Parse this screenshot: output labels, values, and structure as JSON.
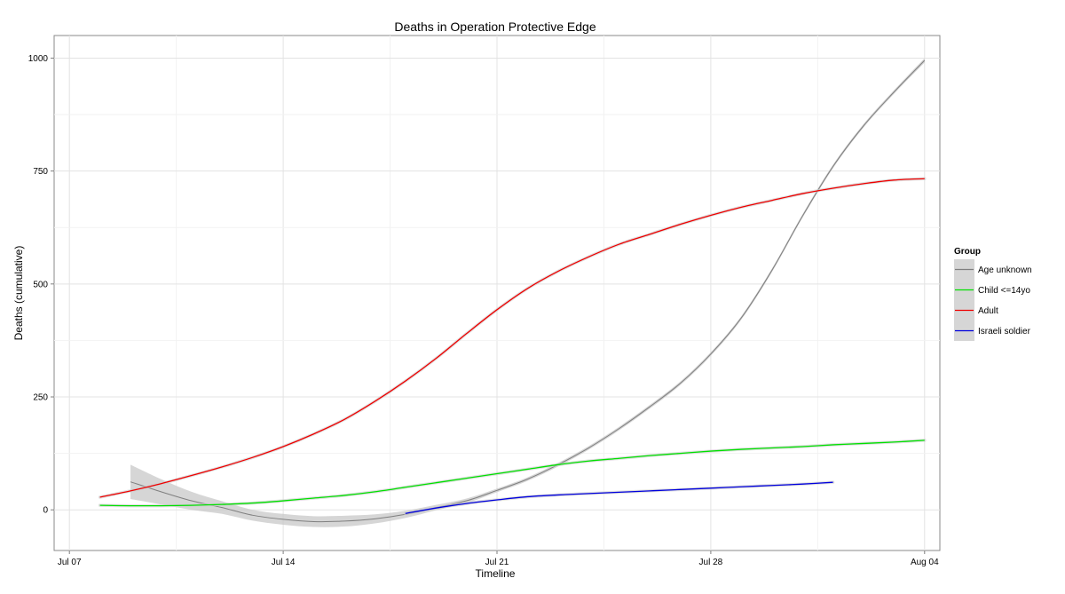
{
  "chart_data": {
    "type": "line",
    "title": "Deaths in Operation Protective Edge",
    "xlabel": "Timeline",
    "ylabel": "Deaths (cumulative)",
    "x_ticks": [
      "Jul 07",
      "Jul 14",
      "Jul 21",
      "Jul 28",
      "Aug 04"
    ],
    "y_ticks": [
      0,
      250,
      500,
      750,
      1000
    ],
    "xlim": [
      "2014-07-06 12:00",
      "2014-08-04 12:00"
    ],
    "ylim": [
      -90,
      1050
    ],
    "grid": true,
    "legend_title": "Group",
    "legend_position": "right",
    "series": [
      {
        "name": "Age unknown",
        "color": "#7f7f7f",
        "x": [
          "2014-07-09",
          "2014-07-10",
          "2014-07-11",
          "2014-07-12",
          "2014-07-13",
          "2014-07-14",
          "2014-07-15",
          "2014-07-16",
          "2014-07-17",
          "2014-07-18",
          "2014-07-19",
          "2014-07-20",
          "2014-07-21",
          "2014-07-22",
          "2014-07-23",
          "2014-07-24",
          "2014-07-25",
          "2014-07-26",
          "2014-07-27",
          "2014-07-28",
          "2014-07-29",
          "2014-07-30",
          "2014-07-31",
          "2014-08-01",
          "2014-08-02",
          "2014-08-03",
          "2014-08-04"
        ],
        "y": [
          62,
          40,
          20,
          5,
          -12,
          -21,
          -26,
          -25,
          -20,
          -10,
          5,
          20,
          43,
          68,
          100,
          137,
          180,
          228,
          280,
          345,
          425,
          530,
          650,
          760,
          850,
          925,
          995
        ],
        "band_halfwidth": [
          38,
          28,
          20,
          14,
          12,
          12,
          12,
          12,
          10,
          8,
          6,
          5,
          4,
          4,
          4,
          4,
          4,
          4,
          4,
          4,
          4,
          4,
          4,
          4,
          4,
          4,
          5
        ]
      },
      {
        "name": "Child <=14yo",
        "color": "#00e000",
        "x": [
          "2014-07-08",
          "2014-07-09",
          "2014-07-10",
          "2014-07-11",
          "2014-07-12",
          "2014-07-13",
          "2014-07-14",
          "2014-07-15",
          "2014-07-16",
          "2014-07-17",
          "2014-07-18",
          "2014-07-19",
          "2014-07-20",
          "2014-07-21",
          "2014-07-22",
          "2014-07-23",
          "2014-07-24",
          "2014-07-25",
          "2014-07-26",
          "2014-07-27",
          "2014-07-28",
          "2014-07-29",
          "2014-07-30",
          "2014-07-31",
          "2014-08-01",
          "2014-08-02",
          "2014-08-03",
          "2014-08-04"
        ],
        "y": [
          10,
          9,
          9,
          10,
          12,
          15,
          20,
          26,
          32,
          40,
          50,
          60,
          70,
          80,
          90,
          100,
          108,
          114,
          120,
          125,
          130,
          134,
          137,
          140,
          144,
          147,
          150,
          154
        ]
      },
      {
        "name": "Adult",
        "color": "#ee0000",
        "x": [
          "2014-07-08",
          "2014-07-09",
          "2014-07-10",
          "2014-07-11",
          "2014-07-12",
          "2014-07-13",
          "2014-07-14",
          "2014-07-15",
          "2014-07-16",
          "2014-07-17",
          "2014-07-18",
          "2014-07-19",
          "2014-07-20",
          "2014-07-21",
          "2014-07-22",
          "2014-07-23",
          "2014-07-24",
          "2014-07-25",
          "2014-07-26",
          "2014-07-27",
          "2014-07-28",
          "2014-07-29",
          "2014-07-30",
          "2014-07-31",
          "2014-08-01",
          "2014-08-02",
          "2014-08-03",
          "2014-08-04"
        ],
        "y": [
          28,
          42,
          58,
          76,
          95,
          116,
          140,
          168,
          200,
          240,
          285,
          335,
          390,
          443,
          490,
          528,
          560,
          588,
          610,
          632,
          652,
          670,
          685,
          700,
          712,
          722,
          730,
          733
        ]
      },
      {
        "name": "Israeli soldier",
        "color": "#0000dd",
        "x": [
          "2014-07-18",
          "2014-07-19",
          "2014-07-20",
          "2014-07-21",
          "2014-07-22",
          "2014-07-23",
          "2014-07-24",
          "2014-07-25",
          "2014-07-26",
          "2014-07-27",
          "2014-07-28",
          "2014-07-29",
          "2014-07-30",
          "2014-07-31",
          "2014-08-01"
        ],
        "y": [
          -8,
          4,
          14,
          22,
          29,
          33,
          36,
          39,
          42,
          45,
          48,
          51,
          54,
          57,
          61
        ]
      }
    ]
  }
}
